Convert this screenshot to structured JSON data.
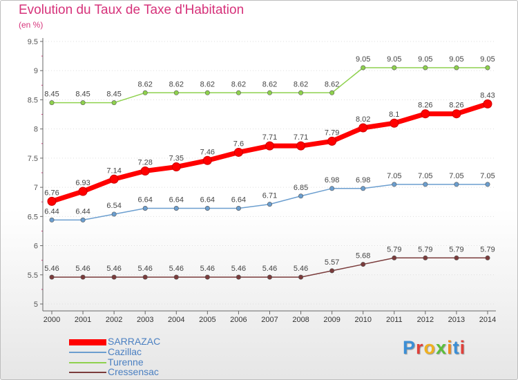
{
  "title": "Evolution du Taux de Taxe d'Habitation",
  "subtitle": "(en %)",
  "logo": "Proxiti",
  "chart_data": {
    "type": "line",
    "title": "Evolution du Taux de Taxe d'Habitation",
    "subtitle": "(en %)",
    "xlabel": "",
    "ylabel": "",
    "x": [
      "2000",
      "2001",
      "2002",
      "2003",
      "2004",
      "2005",
      "2006",
      "2007",
      "2008",
      "2009",
      "2010",
      "2011",
      "2012",
      "2013",
      "2014"
    ],
    "ylim": [
      5,
      9.5
    ],
    "yticks": [
      "5",
      "5.5",
      "6",
      "6.5",
      "7",
      "7.5",
      "8",
      "8.5",
      "9",
      "9.5"
    ],
    "grid": "horizontal",
    "legend": "bottom-left",
    "series": [
      {
        "name": "SARRAZAC",
        "color": "#ff0000",
        "labels": [
          "6.76",
          "6.93",
          "7.14",
          "7.28",
          "7.35",
          "7.46",
          "7.6",
          "7.71",
          "7.71",
          "7.79",
          "8.02",
          "8.1",
          "8.26",
          "8.26",
          "8.43"
        ],
        "values": [
          6.76,
          6.93,
          7.14,
          7.28,
          7.35,
          7.46,
          7.6,
          7.71,
          7.71,
          7.79,
          8.02,
          8.1,
          8.26,
          8.26,
          8.43
        ]
      },
      {
        "name": "Cazillac",
        "color": "#6b9ecf",
        "labels": [
          "6.44",
          "6.44",
          "6.54",
          "6.64",
          "6.64",
          "6.64",
          "6.64",
          "6.71",
          "6.85",
          "6.98",
          "6.98",
          "7.05",
          "7.05",
          "7.05",
          "7.05"
        ],
        "values": [
          6.44,
          6.44,
          6.54,
          6.64,
          6.64,
          6.64,
          6.64,
          6.71,
          6.85,
          6.98,
          6.98,
          7.05,
          7.05,
          7.05,
          7.05
        ]
      },
      {
        "name": "Turenne",
        "color": "#8ed14d",
        "labels": [
          "8.45",
          "8.45",
          "8.45",
          "8.62",
          "8.62",
          "8.62",
          "8.62",
          "8.62",
          "8.62",
          "8.62",
          "9.05",
          "9.05",
          "9.05",
          "9.05",
          "9.05"
        ],
        "values": [
          8.45,
          8.45,
          8.45,
          8.62,
          8.62,
          8.62,
          8.62,
          8.62,
          8.62,
          8.62,
          9.05,
          9.05,
          9.05,
          9.05,
          9.05
        ]
      },
      {
        "name": "Cressensac",
        "color": "#7a3b3b",
        "labels": [
          "5.46",
          "5.46",
          "5.46",
          "5.46",
          "5.46",
          "5.46",
          "5.46",
          "5.46",
          "5.46",
          "5.57",
          "5.68",
          "5.79",
          "5.79",
          "5.79",
          "5.79"
        ],
        "values": [
          5.46,
          5.46,
          5.46,
          5.46,
          5.46,
          5.46,
          5.46,
          5.46,
          5.46,
          5.57,
          5.68,
          5.79,
          5.79,
          5.79,
          5.79
        ]
      }
    ]
  },
  "colors": {
    "title": "#d6327a",
    "legend_text": "#4a7fc1",
    "axis": "#666666",
    "grid": "#dddddd"
  }
}
